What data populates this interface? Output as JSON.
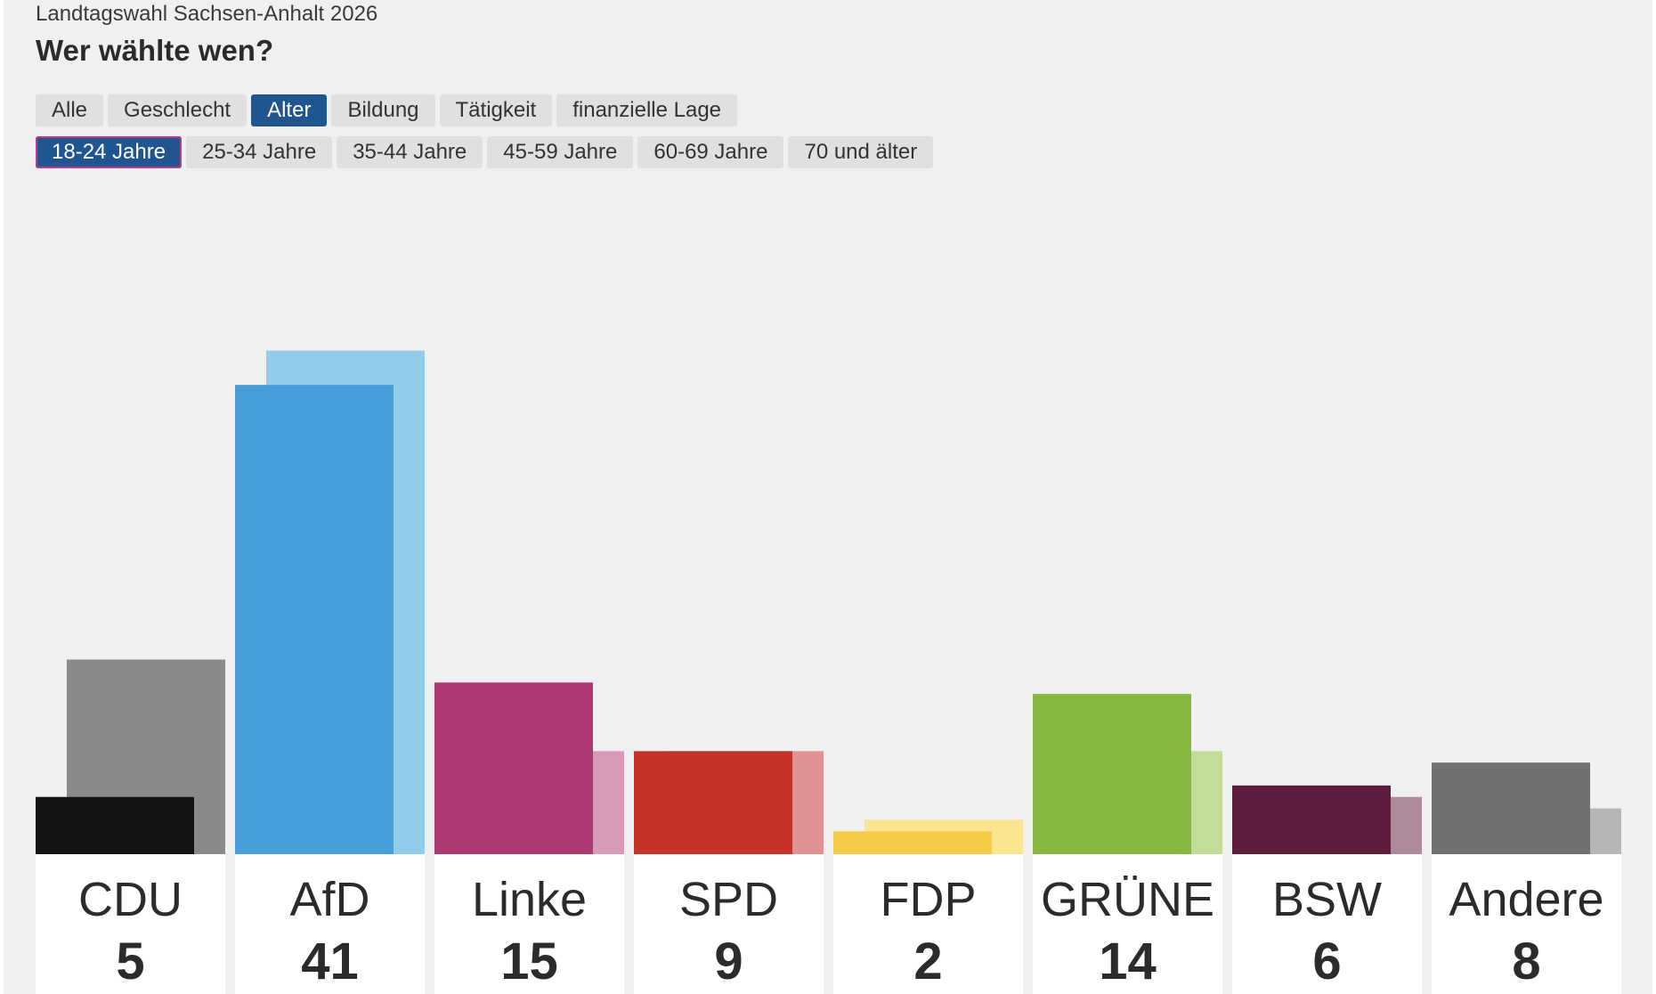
{
  "header": {
    "kicker": "Landtagswahl Sachsen-Anhalt 2026",
    "title": "Wer wählte wen?"
  },
  "tabs": [
    {
      "label": "Alle",
      "active": false
    },
    {
      "label": "Geschlecht",
      "active": false
    },
    {
      "label": "Alter",
      "active": true
    },
    {
      "label": "Bildung",
      "active": false
    },
    {
      "label": "Tätigkeit",
      "active": false
    },
    {
      "label": "finanzielle Lage",
      "active": false
    }
  ],
  "subtabs": [
    {
      "label": "18-24 Jahre",
      "active": true
    },
    {
      "label": "25-34 Jahre",
      "active": false
    },
    {
      "label": "35-44 Jahre",
      "active": false
    },
    {
      "label": "45-59 Jahre",
      "active": false
    },
    {
      "label": "60-69 Jahre",
      "active": false
    },
    {
      "label": "70 und älter",
      "active": false
    }
  ],
  "chart_data": {
    "type": "bar",
    "categories": [
      "CDU",
      "AfD",
      "Linke",
      "SPD",
      "FDP",
      "GRÜNE",
      "BSW",
      "Andere"
    ],
    "series": [
      {
        "values": [
          5,
          41,
          15,
          9,
          2,
          14,
          6,
          8
        ]
      },
      {
        "values": [
          17,
          44,
          9,
          9,
          3,
          9,
          5,
          4
        ]
      }
    ],
    "colors": {
      "current": [
        "#141414",
        "#479ed9",
        "#ad3a72",
        "#c4322a",
        "#f5cd48",
        "#87b940",
        "#5e1c3f",
        "#717173"
      ],
      "comparison": [
        "#8a8a8a",
        "#93cbeb",
        "#d79ab9",
        "#e19292",
        "#fbe590",
        "#c2dd9a",
        "#ad8a9c",
        "#b6b6b7"
      ]
    },
    "ylim": [
      0,
      44
    ]
  }
}
